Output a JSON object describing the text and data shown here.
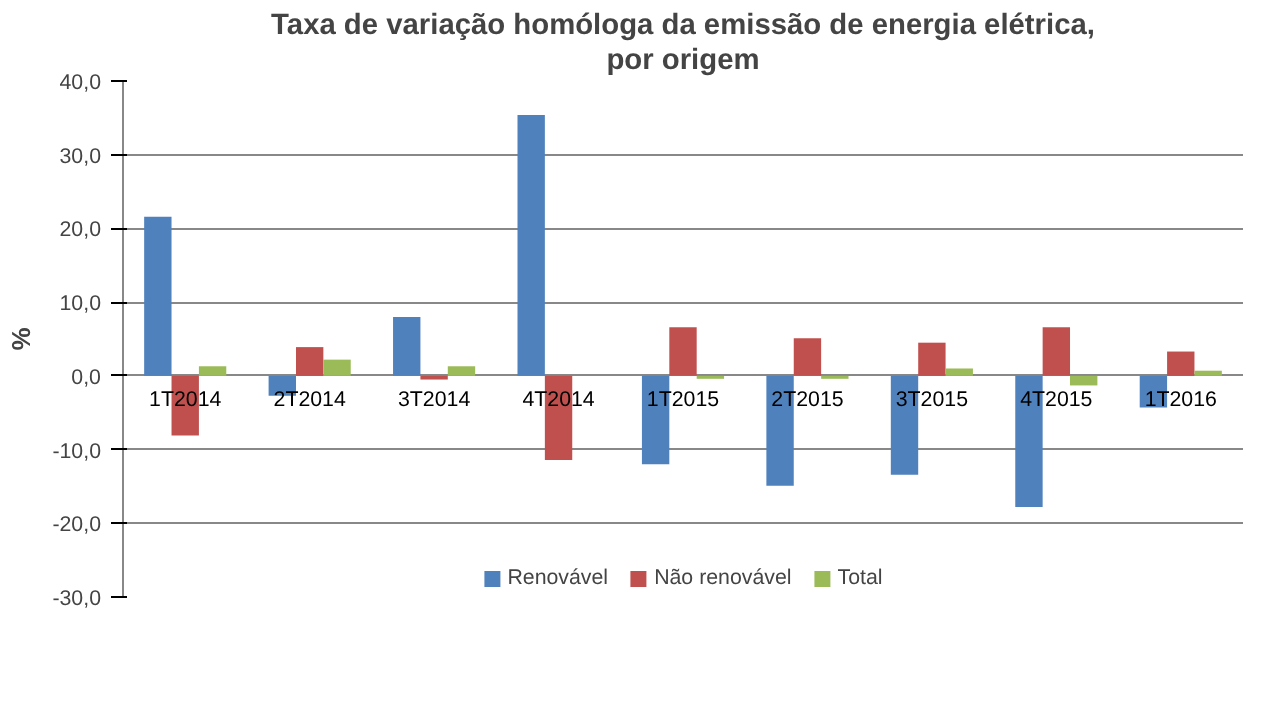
{
  "chart_data": {
    "type": "bar",
    "title": "Taxa de variação homóloga da emissão de energia elétrica,\npor origem",
    "ylabel": "%",
    "categories": [
      "1T2014",
      "2T2014",
      "3T2014",
      "4T2014",
      "1T2015",
      "2T2015",
      "3T2015",
      "4T2015",
      "1T2016"
    ],
    "series": [
      {
        "name": "Renovável",
        "color": "#4f81bd",
        "values": [
          21.6,
          -2.7,
          8.0,
          35.4,
          -12.0,
          -14.9,
          -13.4,
          -17.8,
          -4.3
        ]
      },
      {
        "name": "Não renovável",
        "color": "#c0504d",
        "values": [
          -8.1,
          3.9,
          -0.5,
          -11.4,
          6.6,
          5.1,
          4.5,
          6.6,
          3.3
        ]
      },
      {
        "name": "Total",
        "color": "#9bbb59",
        "values": [
          1.3,
          2.2,
          1.3,
          0.0,
          -0.4,
          -0.4,
          1.0,
          -1.3,
          0.7
        ]
      }
    ],
    "ylim": [
      -30,
      40
    ],
    "yticks": [
      {
        "value": -30,
        "label": "-30,0"
      },
      {
        "value": -20,
        "label": "-20,0"
      },
      {
        "value": -10,
        "label": "-10,0"
      },
      {
        "value": 0,
        "label": "0,0"
      },
      {
        "value": 10,
        "label": "10,0"
      },
      {
        "value": 20,
        "label": "20,0"
      },
      {
        "value": 30,
        "label": "30,0"
      },
      {
        "value": 40,
        "label": "40,0"
      }
    ],
    "grid": "y",
    "legend": "bottom"
  }
}
